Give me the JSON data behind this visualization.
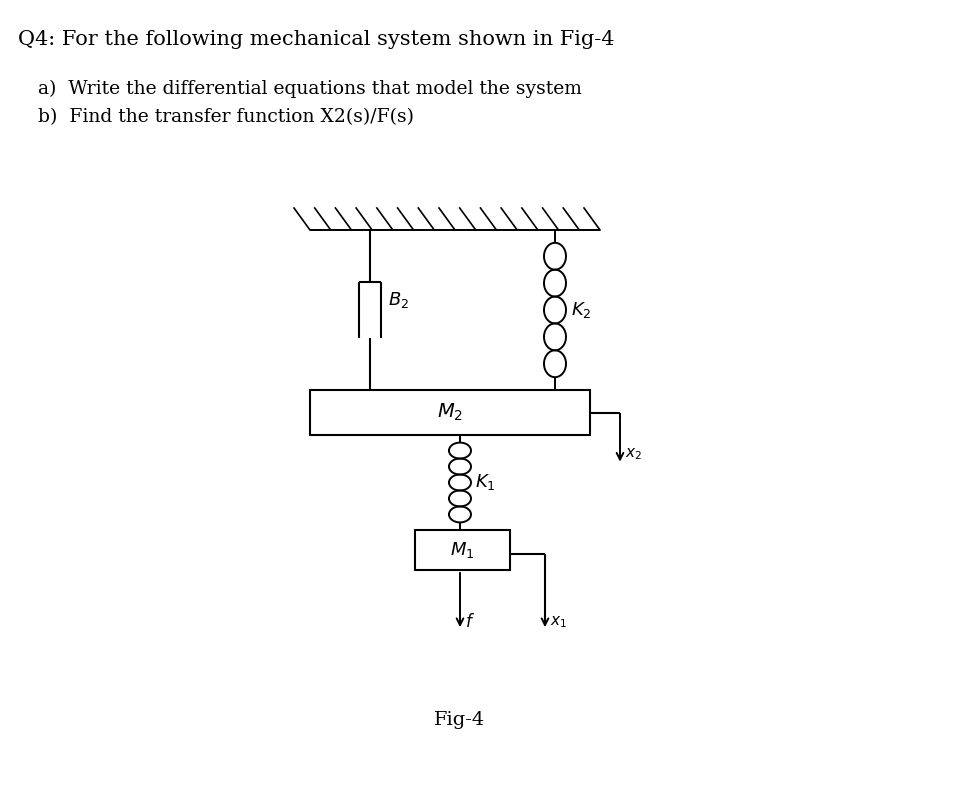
{
  "title_text": "Q4: For the following mechanical system shown in Fig-4",
  "subtitle_a": "a)  Write the differential equations that model the system",
  "subtitle_b": "b)  Find the transfer function X2(s)/F(s)",
  "fig_label": "Fig-4",
  "bg_color": "#ffffff",
  "text_color": "#000000"
}
